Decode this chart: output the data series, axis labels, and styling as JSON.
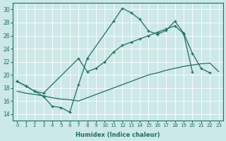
{
  "xlabel": "Humidex (Indice chaleur)",
  "xlim": [
    -0.5,
    23.5
  ],
  "ylim": [
    13,
    31
  ],
  "yticks": [
    14,
    16,
    18,
    20,
    22,
    24,
    26,
    28,
    30
  ],
  "xticks": [
    0,
    1,
    2,
    3,
    4,
    5,
    6,
    7,
    8,
    9,
    10,
    11,
    12,
    13,
    14,
    15,
    16,
    17,
    18,
    19,
    20,
    21,
    22,
    23
  ],
  "bg_color": "#cce8e8",
  "line_color": "#1a7060",
  "grid_color": "#ffffff",
  "line1_x": [
    0,
    1,
    2,
    3,
    4,
    5,
    6,
    7,
    8,
    11,
    12,
    13,
    14,
    15,
    16,
    17,
    18,
    19,
    20,
    21,
    22
  ],
  "line1_y": [
    19.0,
    18.3,
    17.5,
    16.7,
    15.2,
    15.0,
    14.3,
    18.5,
    22.5,
    28.2,
    30.2,
    29.5,
    28.5,
    26.7,
    26.2,
    26.8,
    28.2,
    26.4,
    23.3,
    21.0,
    20.3
  ],
  "line2_x": [
    0,
    1,
    2,
    3,
    7,
    8,
    9,
    10,
    11,
    12,
    13,
    14,
    15,
    16,
    17,
    18,
    19,
    20
  ],
  "line2_y": [
    19.0,
    18.3,
    17.5,
    17.2,
    22.5,
    20.5,
    21.0,
    22.0,
    23.5,
    24.5,
    25.0,
    25.5,
    26.0,
    26.5,
    27.0,
    27.5,
    26.3,
    20.5
  ],
  "line3_x": [
    0,
    1,
    2,
    3,
    4,
    5,
    6,
    7,
    8,
    9,
    10,
    11,
    12,
    13,
    14,
    15,
    16,
    17,
    18,
    19,
    20,
    21,
    22,
    23
  ],
  "line3_y": [
    17.5,
    17.2,
    17.0,
    16.8,
    16.5,
    16.3,
    16.2,
    16.0,
    16.5,
    17.0,
    17.5,
    18.0,
    18.5,
    19.0,
    19.5,
    20.0,
    20.3,
    20.7,
    21.0,
    21.3,
    21.5,
    21.7,
    21.8,
    20.5
  ]
}
